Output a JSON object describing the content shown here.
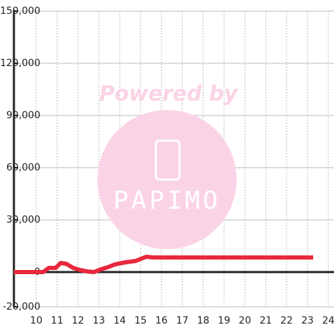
{
  "chart_data": {
    "type": "line",
    "watermark": {
      "title": "Powered by",
      "logo": "PAPIMO"
    },
    "x": [
      8.93,
      10.33,
      10.6,
      10.93,
      11.17,
      11.43,
      11.77,
      12.1,
      12.43,
      12.77,
      13.1,
      13.43,
      13.77,
      14.27,
      14.77,
      14.93,
      15.27,
      15.6,
      23.27
    ],
    "series": [
      {
        "color": "#e8283c",
        "values": [
          0,
          0,
          2400,
          2400,
          5200,
          4800,
          2400,
          1200,
          400,
          0,
          1600,
          2800,
          4400,
          5600,
          6400,
          7200,
          8800,
          8400,
          8400
        ]
      }
    ],
    "xlim": [
      8.93,
      24.27
    ],
    "xticks": [
      10,
      11,
      12,
      13,
      14,
      15,
      16,
      17,
      18,
      19,
      20,
      21,
      22,
      23,
      24
    ],
    "ylim": [
      -20000,
      150000
    ],
    "yticks": [
      {
        "value": -20000,
        "label": "-20,000"
      },
      {
        "value": 0,
        "label": "0"
      },
      {
        "value": 30000,
        "label": "30,000"
      },
      {
        "value": 60000,
        "label": "60,000"
      },
      {
        "value": 90000,
        "label": "90,000"
      },
      {
        "value": 120000,
        "label": "120,000"
      },
      {
        "value": 150000,
        "label": "150,000"
      }
    ],
    "grid": true
  }
}
